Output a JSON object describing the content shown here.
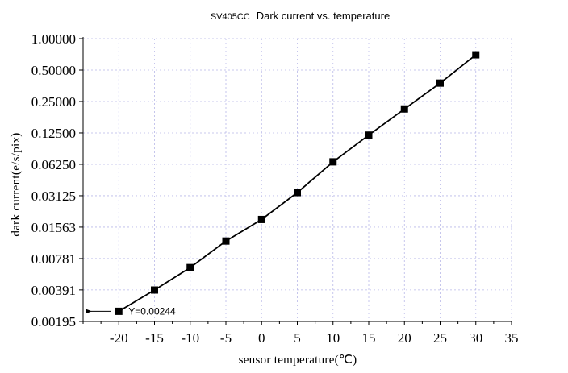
{
  "chart_data": {
    "type": "line",
    "title_prefix": "SV405CC",
    "title_main": "Dark current vs. temperature",
    "xlabel": "sensor temperature(℃)",
    "ylabel": "dark current(e/s/pix)",
    "xlim": [
      -25,
      35
    ],
    "x_ticks": [
      -20,
      -15,
      -10,
      -5,
      0,
      5,
      10,
      15,
      20,
      25,
      30,
      35
    ],
    "x_tick_labels": [
      "-20",
      "-15",
      "-10",
      "-5",
      "0",
      "5",
      "10",
      "15",
      "20",
      "25",
      "30",
      "35"
    ],
    "y_scale": "log2",
    "ylim": [
      0.00195,
      1.0
    ],
    "y_ticks": [
      0.00195,
      0.00391,
      0.00781,
      0.01563,
      0.03125,
      0.0625,
      0.125,
      0.25,
      0.5,
      1.0
    ],
    "y_tick_labels": [
      "0.00195",
      "0.00391",
      "0.00781",
      "0.01563",
      "0.03125",
      "0.06250",
      "0.12500",
      "0.25000",
      "0.50000",
      "1.00000"
    ],
    "grid": true,
    "series": [
      {
        "x": [
          -20,
          -15,
          -10,
          -5,
          0,
          5,
          10,
          15,
          20,
          25,
          30
        ],
        "y": [
          0.00244,
          0.0039,
          0.0064,
          0.0115,
          0.0185,
          0.0335,
          0.066,
          0.119,
          0.212,
          0.375,
          0.7
        ]
      }
    ],
    "annotation": {
      "text": "Y=0.00244",
      "x": -20,
      "y": 0.00244
    }
  }
}
